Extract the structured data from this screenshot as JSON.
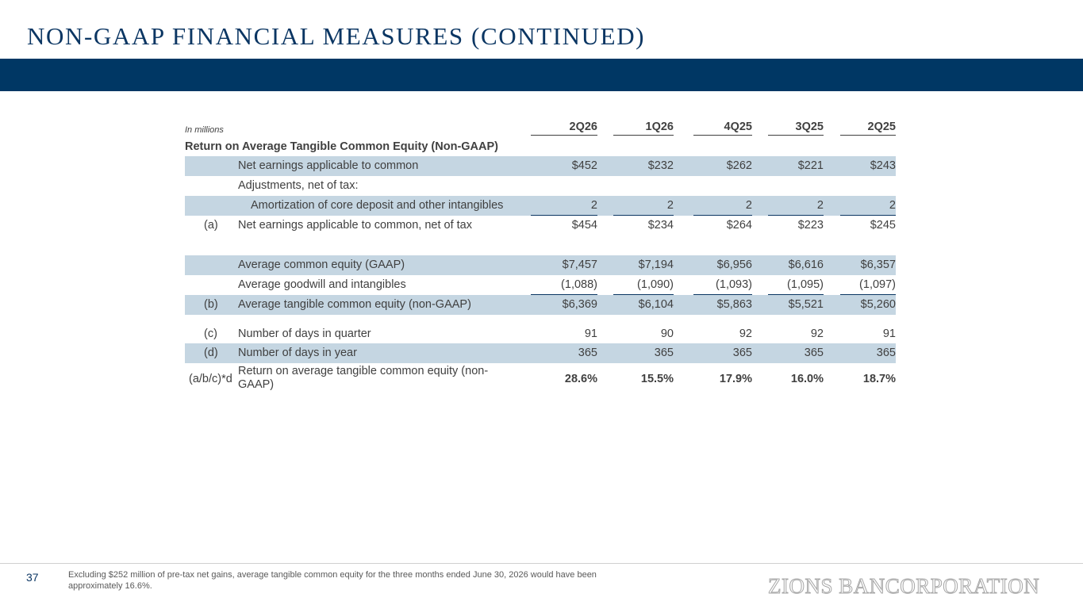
{
  "title": "NON-GAAP FINANCIAL MEASURES (CONTINUED)",
  "table": {
    "units_note": "In millions",
    "columns": [
      "2Q26",
      "1Q26",
      "4Q25",
      "3Q25",
      "2Q25"
    ],
    "section_title": "Return on Average Tangible Common Equity (Non-GAAP)",
    "rows": [
      {
        "label": "",
        "desc": "Net earnings applicable to common",
        "values": [
          "$452",
          "$232",
          "$262",
          "$221",
          "$243"
        ]
      },
      {
        "label": "",
        "desc": "Adjustments, net of tax:",
        "values": [
          "",
          "",
          "",
          "",
          ""
        ]
      },
      {
        "label": "",
        "desc": "Amortization of core deposit and other intangibles",
        "values": [
          "2",
          "2",
          "2",
          "2",
          "2"
        ]
      },
      {
        "label": "(a)",
        "desc": "Net earnings applicable to common, net of tax",
        "values": [
          "$454",
          "$234",
          "$264",
          "$223",
          "$245"
        ]
      },
      {
        "label": "",
        "desc": "Average common equity (GAAP)",
        "values": [
          "$7,457",
          "$7,194",
          "$6,956",
          "$6,616",
          "$6,357"
        ]
      },
      {
        "label": "",
        "desc": "Average goodwill and intangibles",
        "values": [
          "(1,088)",
          "(1,090)",
          "(1,093)",
          "(1,095)",
          "(1,097)"
        ]
      },
      {
        "label": "(b)",
        "desc": "Average tangible common equity (non-GAAP)",
        "values": [
          "$6,369",
          "$6,104",
          "$5,863",
          "$5,521",
          "$5,260"
        ]
      },
      {
        "label": "(c)",
        "desc": "Number of days in quarter",
        "values": [
          "91",
          "90",
          "92",
          "92",
          "91"
        ]
      },
      {
        "label": "(d)",
        "desc": "Number of days in year",
        "values": [
          "365",
          "365",
          "365",
          "365",
          "365"
        ]
      },
      {
        "label": "(a/b/c)*d",
        "desc": "Return on average tangible common equity (non-GAAP)",
        "values": [
          "28.6%",
          "15.5%",
          "17.9%",
          "16.0%",
          "18.7%"
        ]
      }
    ]
  },
  "footer": {
    "page_number": "37",
    "footnote": "Excluding $252 million of pre-tax net gains, average tangible common equity for the three months ended June 30, 2026 would have been approximately 16.6%.",
    "logo_text": "ZIONS BANCORPORATION"
  },
  "colors": {
    "brand_navy": "#003764",
    "row_shade": "#c5d6e2",
    "logo_gray": "#a6a6a6"
  }
}
